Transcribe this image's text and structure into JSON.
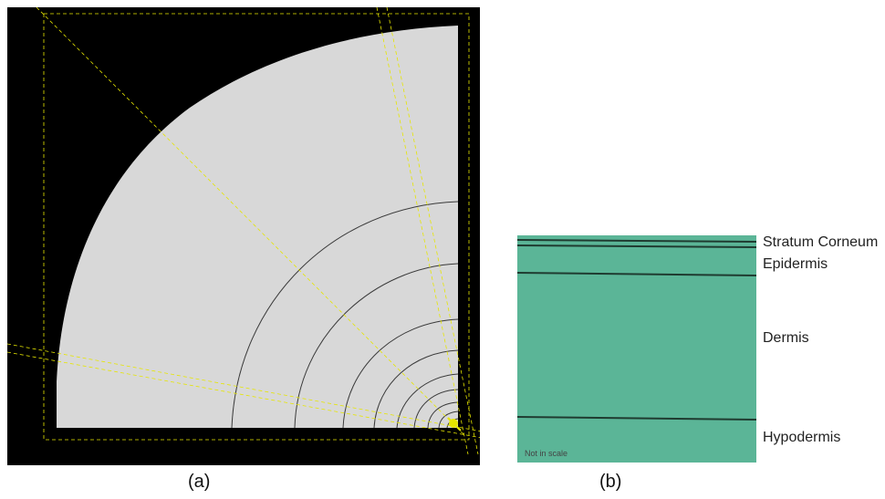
{
  "panels": {
    "a": {
      "caption": "(a)"
    },
    "b": {
      "caption": "(b)",
      "layers": [
        "Stratum Corneum",
        "Epidermis",
        "Dermis",
        "Hypodermis"
      ],
      "note": "Not in scale"
    }
  },
  "colors": {
    "background_a": "#000000",
    "mesh_fill": "#d8d8d8",
    "mesh_lines": "#3a3a3a",
    "guide_lines": "#e6e600",
    "tissue_fill": "#5bb597",
    "tissue_lines": "#1f3b30"
  }
}
